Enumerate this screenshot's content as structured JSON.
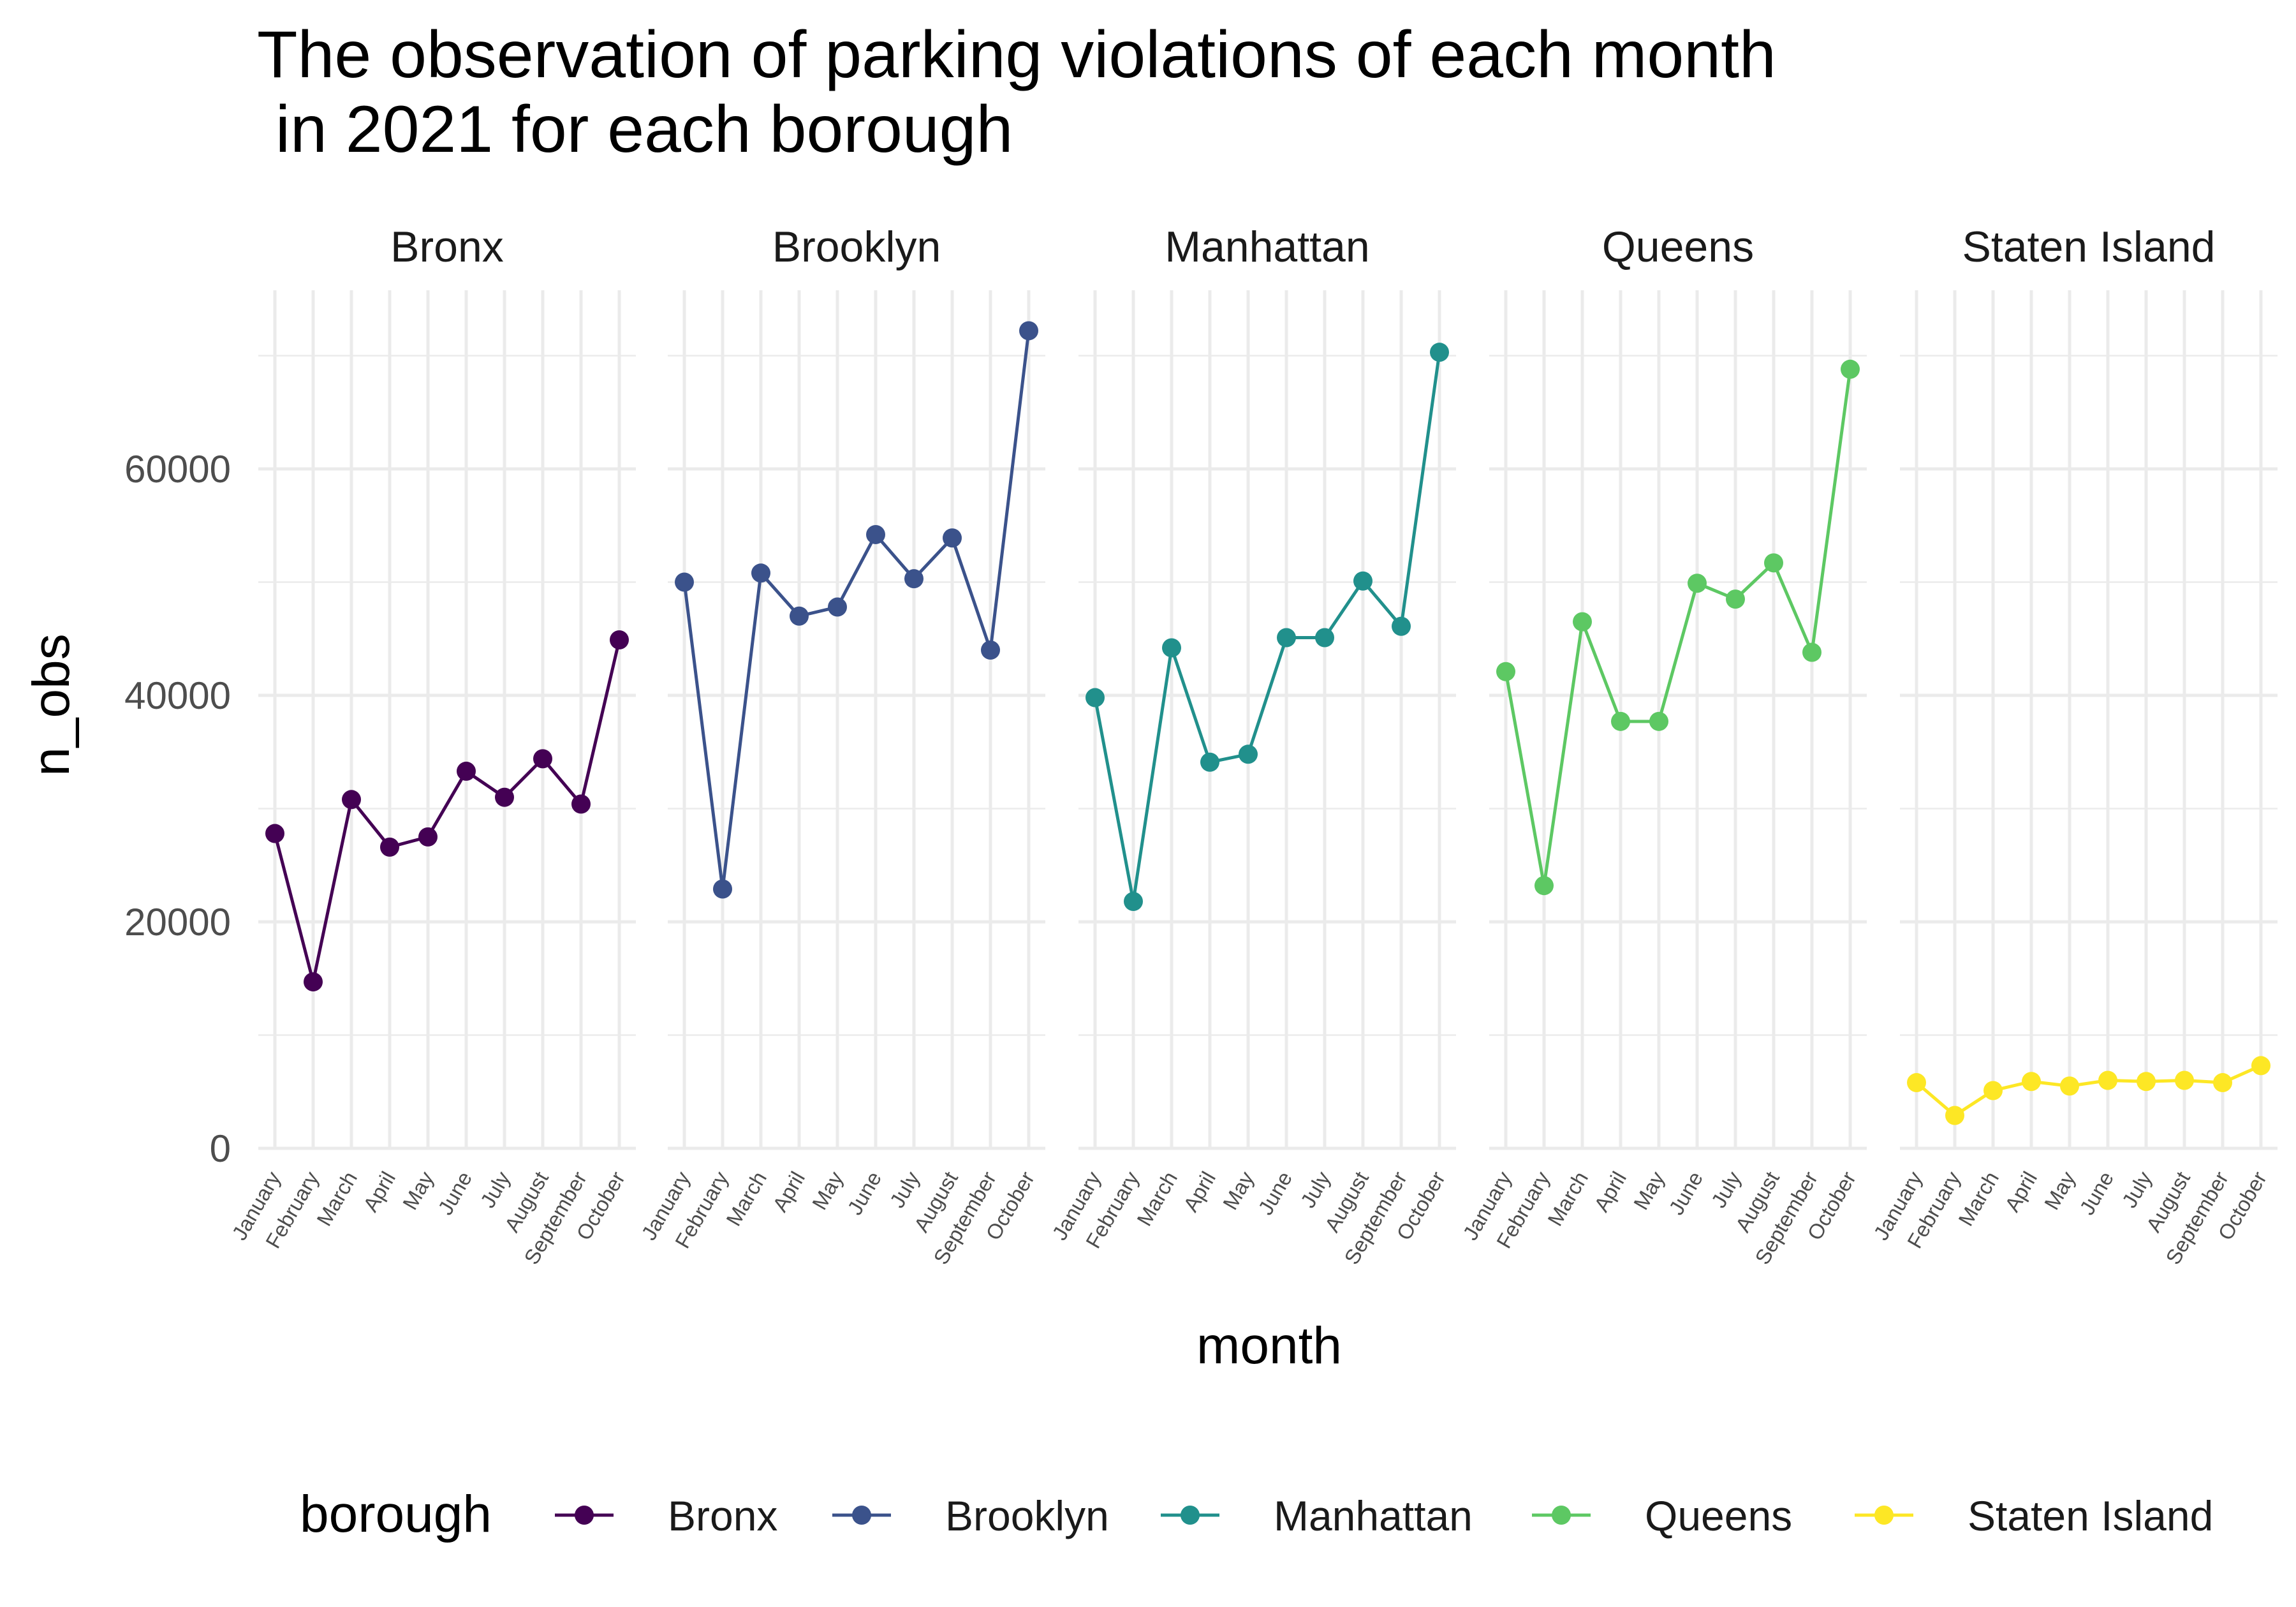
{
  "chart_data": {
    "type": "line",
    "title_lines": [
      "The observation of parking violations of each month",
      " in 2021 for each borough"
    ],
    "xlabel": "month",
    "ylabel": "n_obs",
    "ylim": [
      0,
      73000
    ],
    "yticks": [
      0,
      20000,
      40000,
      60000
    ],
    "ytick_labels": [
      "0",
      "20000",
      "40000",
      "60000"
    ],
    "categories": [
      "January",
      "February",
      "March",
      "April",
      "May",
      "June",
      "July",
      "August",
      "September",
      "October"
    ],
    "facets": [
      "Bronx",
      "Brooklyn",
      "Manhattan",
      "Queens",
      "Staten Island"
    ],
    "grid": true,
    "legend": {
      "title": "borough",
      "position": "bottom"
    },
    "series": [
      {
        "name": "Bronx",
        "color": "#440154",
        "values": [
          27800,
          14700,
          30800,
          26600,
          27500,
          33300,
          31000,
          34400,
          30400,
          44900
        ]
      },
      {
        "name": "Brooklyn",
        "color": "#3B528B",
        "values": [
          50000,
          22900,
          50800,
          47000,
          47800,
          54200,
          50300,
          53900,
          44000,
          72200
        ]
      },
      {
        "name": "Manhattan",
        "color": "#21908C",
        "values": [
          39800,
          21800,
          44200,
          34100,
          34800,
          45100,
          45100,
          50100,
          46100,
          70300
        ]
      },
      {
        "name": "Queens",
        "color": "#5DC863",
        "values": [
          42100,
          23200,
          46500,
          37700,
          37700,
          49900,
          48500,
          51700,
          43800,
          68800
        ]
      },
      {
        "name": "Staten Island",
        "color": "#FDE725",
        "values": [
          5800,
          2900,
          5100,
          5900,
          5500,
          6000,
          5900,
          6000,
          5800,
          7300
        ]
      }
    ]
  }
}
